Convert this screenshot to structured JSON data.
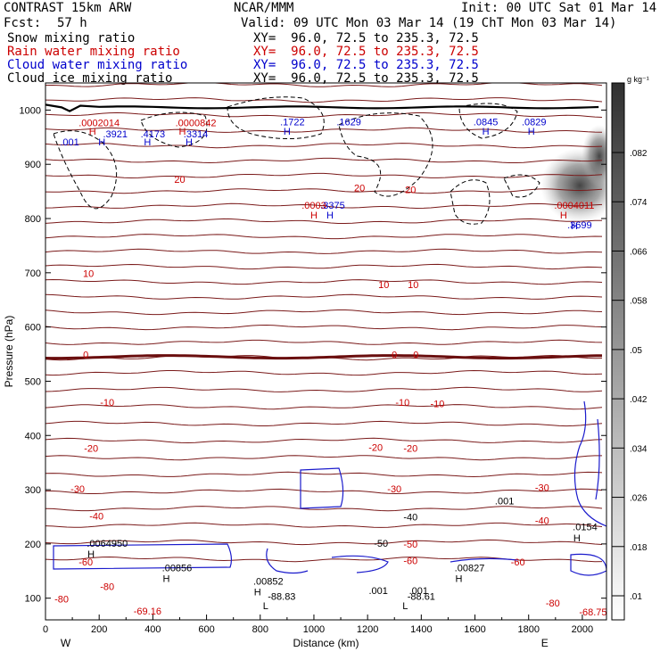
{
  "header": {
    "model": "CONTRAST 15km ARW",
    "org": "NCAR/MMM",
    "init": "Init: 00 UTC Sat 01 Mar 14",
    "fcst_label": "Fcst:",
    "fcst_value": "57 h",
    "valid": "Valid: 09 UTC Mon 03 Mar 14 (19 ChT Mon 03 Mar 14)"
  },
  "fields": [
    {
      "name": "Snow mixing ratio",
      "xy": "XY=  96.0, 72.5 to 235.3, 72.5",
      "color": "#000000"
    },
    {
      "name": "Rain water mixing ratio",
      "xy": "XY=  96.0, 72.5 to 235.3, 72.5",
      "color": "#cc0000"
    },
    {
      "name": "Cloud water mixing ratio",
      "xy": "XY=  96.0, 72.5 to 235.3, 72.5",
      "color": "#0000cc"
    },
    {
      "name": "Cloud ice mixing ratio",
      "xy": "XY=  96.0, 72.5 to 235.3, 72.5",
      "color": "#000000"
    }
  ],
  "chart_data": {
    "type": "cross-section",
    "xlabel": "Distance (km)",
    "ylabel": "Pressure (hPa)",
    "xlim": [
      0,
      2090
    ],
    "ylim": [
      1050,
      60
    ],
    "x_ticks": [
      0,
      200,
      400,
      600,
      800,
      1000,
      1200,
      1400,
      1600,
      1800,
      2000
    ],
    "y_ticks": [
      100,
      200,
      300,
      400,
      500,
      600,
      700,
      800,
      900,
      1000
    ],
    "end_labels": {
      "left": "W",
      "right": "E"
    },
    "colorbar": {
      "units": "g kg⁻¹",
      "ticks": [
        ".01",
        ".018",
        ".026",
        ".034",
        ".042",
        ".05",
        ".058",
        ".066",
        ".074",
        ".082"
      ],
      "color_low": "#ffffff",
      "color_high": "#303030"
    },
    "temperature_contours": [
      {
        "label": "-80",
        "p": 100
      },
      {
        "label": "-60",
        "p": 165
      },
      {
        "label": "-50",
        "p": 195
      },
      {
        "label": "-40",
        "p": 245
      },
      {
        "label": "-30",
        "p": 295
      },
      {
        "label": "-20",
        "p": 375
      },
      {
        "label": "-10",
        "p": 460
      },
      {
        "label": "0",
        "p": 545
      },
      {
        "label": "10",
        "p": 680
      },
      {
        "label": "20",
        "p": 880
      }
    ],
    "annotations": [
      {
        "text": "-69.16",
        "x": 380,
        "p": 70,
        "color": "#cc0000"
      },
      {
        "text": "-80",
        "x": 60,
        "p": 92,
        "color": "#cc0000"
      },
      {
        "text": "-80",
        "x": 230,
        "p": 115,
        "color": "#cc0000"
      },
      {
        "text": "-80",
        "x": 1890,
        "p": 85,
        "color": "#cc0000"
      },
      {
        "text": "-68.75",
        "x": 2040,
        "p": 68,
        "color": "#cc0000"
      },
      {
        "text": "L",
        "x": 820,
        "p": 80,
        "color": "#000000"
      },
      {
        "text": "-88.83",
        "x": 880,
        "p": 97,
        "color": "#000000"
      },
      {
        "text": "L",
        "x": 1340,
        "p": 80,
        "color": "#000000"
      },
      {
        "text": "-88.61",
        "x": 1400,
        "p": 97,
        "color": "#000000"
      },
      {
        "text": ".001",
        "x": 1240,
        "p": 108,
        "color": "#000000"
      },
      {
        "text": ".001",
        "x": 1390,
        "p": 108,
        "color": "#000000"
      },
      {
        "text": "H",
        "x": 790,
        "p": 105,
        "color": "#000000"
      },
      {
        "text": ".00852",
        "x": 830,
        "p": 125,
        "color": "#000000"
      },
      {
        "text": "H",
        "x": 450,
        "p": 130,
        "color": "#000000"
      },
      {
        "text": ".00856",
        "x": 490,
        "p": 150,
        "color": "#000000"
      },
      {
        "text": "H",
        "x": 1540,
        "p": 130,
        "color": "#000000"
      },
      {
        "text": ".00827",
        "x": 1580,
        "p": 150,
        "color": "#000000"
      },
      {
        "text": "H",
        "x": 170,
        "p": 175,
        "color": "#000000"
      },
      {
        "text": ".00649",
        "x": 210,
        "p": 195,
        "color": "#000000"
      },
      {
        "text": "-60",
        "x": 150,
        "p": 160,
        "color": "#cc0000"
      },
      {
        "text": "-50",
        "x": 280,
        "p": 195,
        "color": "#000000"
      },
      {
        "text": "-40",
        "x": 190,
        "p": 245,
        "color": "#cc0000"
      },
      {
        "text": "-30",
        "x": 120,
        "p": 295,
        "color": "#cc0000"
      },
      {
        "text": "-60",
        "x": 1360,
        "p": 163,
        "color": "#cc0000"
      },
      {
        "text": "-60",
        "x": 1760,
        "p": 160,
        "color": "#cc0000"
      },
      {
        "text": "-50",
        "x": 1250,
        "p": 195,
        "color": "#000000"
      },
      {
        "text": "-50",
        "x": 1360,
        "p": 193,
        "color": "#cc0000"
      },
      {
        "text": "-40",
        "x": 1360,
        "p": 243,
        "color": "#000000"
      },
      {
        "text": "-40",
        "x": 1850,
        "p": 237,
        "color": "#cc0000"
      },
      {
        "text": "H",
        "x": 1980,
        "p": 205,
        "color": "#000000"
      },
      {
        "text": ".0154",
        "x": 2010,
        "p": 225,
        "color": "#000000"
      },
      {
        "text": ".001",
        "x": 1710,
        "p": 273,
        "color": "#000000"
      },
      {
        "text": "-30",
        "x": 1300,
        "p": 295,
        "color": "#cc0000"
      },
      {
        "text": "-30",
        "x": 1850,
        "p": 298,
        "color": "#cc0000"
      },
      {
        "text": "-20",
        "x": 170,
        "p": 370,
        "color": "#cc0000"
      },
      {
        "text": "-20",
        "x": 1230,
        "p": 372,
        "color": "#cc0000"
      },
      {
        "text": "-20",
        "x": 1360,
        "p": 370,
        "color": "#cc0000"
      },
      {
        "text": "-10",
        "x": 230,
        "p": 455,
        "color": "#cc0000"
      },
      {
        "text": "-10",
        "x": 1330,
        "p": 455,
        "color": "#cc0000"
      },
      {
        "text": "-10",
        "x": 1460,
        "p": 452,
        "color": "#cc0000"
      },
      {
        "text": "0",
        "x": 150,
        "p": 543,
        "color": "#cc0000"
      },
      {
        "text": "0",
        "x": 1300,
        "p": 543,
        "color": "#cc0000"
      },
      {
        "text": "0",
        "x": 1380,
        "p": 543,
        "color": "#cc0000"
      },
      {
        "text": "10",
        "x": 160,
        "p": 692,
        "color": "#cc0000"
      },
      {
        "text": "10",
        "x": 1260,
        "p": 672,
        "color": "#cc0000"
      },
      {
        "text": "10",
        "x": 1370,
        "p": 672,
        "color": "#cc0000"
      },
      {
        "text": "H",
        "x": 1000,
        "p": 800,
        "color": "#cc0000"
      },
      {
        "text": "H",
        "x": 1060,
        "p": 800,
        "color": "#0000cc"
      },
      {
        "text": ".0003",
        "x": 1000,
        "p": 818,
        "color": "#cc0000"
      },
      {
        "text": ".3375",
        "x": 1070,
        "p": 818,
        "color": "#0000cc"
      },
      {
        "text": "20",
        "x": 500,
        "p": 866,
        "color": "#cc0000"
      },
      {
        "text": "20",
        "x": 1170,
        "p": 850,
        "color": "#cc0000"
      },
      {
        "text": "20",
        "x": 1360,
        "p": 847,
        "color": "#cc0000"
      },
      {
        "text": "H",
        "x": 1970,
        "p": 780,
        "color": "#0000cc"
      },
      {
        "text": ".3699",
        "x": 1990,
        "p": 782,
        "color": "#0000cc"
      },
      {
        "text": "H",
        "x": 1930,
        "p": 800,
        "color": "#cc0000"
      },
      {
        "text": ".0004011",
        "x": 1970,
        "p": 818,
        "color": "#cc0000"
      },
      {
        "text": ".001",
        "x": 90,
        "p": 935,
        "color": "#0000cc"
      },
      {
        "text": "H",
        "x": 210,
        "p": 935,
        "color": "#0000cc"
      },
      {
        "text": ".3921",
        "x": 260,
        "p": 950,
        "color": "#0000cc"
      },
      {
        "text": "H",
        "x": 175,
        "p": 955,
        "color": "#cc0000"
      },
      {
        "text": "H",
        "x": 380,
        "p": 935,
        "color": "#0000cc"
      },
      {
        "text": ".4173",
        "x": 400,
        "p": 950,
        "color": "#0000cc"
      },
      {
        "text": "H",
        "x": 535,
        "p": 935,
        "color": "#0000cc"
      },
      {
        "text": ".3314",
        "x": 560,
        "p": 950,
        "color": "#0000cc"
      },
      {
        "text": "H",
        "x": 510,
        "p": 955,
        "color": "#cc0000"
      },
      {
        "text": ".0002014",
        "x": 200,
        "p": 970,
        "color": "#cc0000"
      },
      {
        "text": ".0000842",
        "x": 560,
        "p": 970,
        "color": "#cc0000"
      },
      {
        "text": "H",
        "x": 900,
        "p": 955,
        "color": "#0000cc"
      },
      {
        "text": ".1722",
        "x": 920,
        "p": 972,
        "color": "#0000cc"
      },
      {
        "text": ".1629",
        "x": 1130,
        "p": 972,
        "color": "#0000cc"
      },
      {
        "text": "H",
        "x": 1640,
        "p": 955,
        "color": "#0000cc"
      },
      {
        "text": ".0845",
        "x": 1640,
        "p": 972,
        "color": "#0000cc"
      },
      {
        "text": "H",
        "x": 1810,
        "p": 955,
        "color": "#0000cc"
      },
      {
        "text": ".0829",
        "x": 1820,
        "p": 972,
        "color": "#0000cc"
      }
    ]
  }
}
